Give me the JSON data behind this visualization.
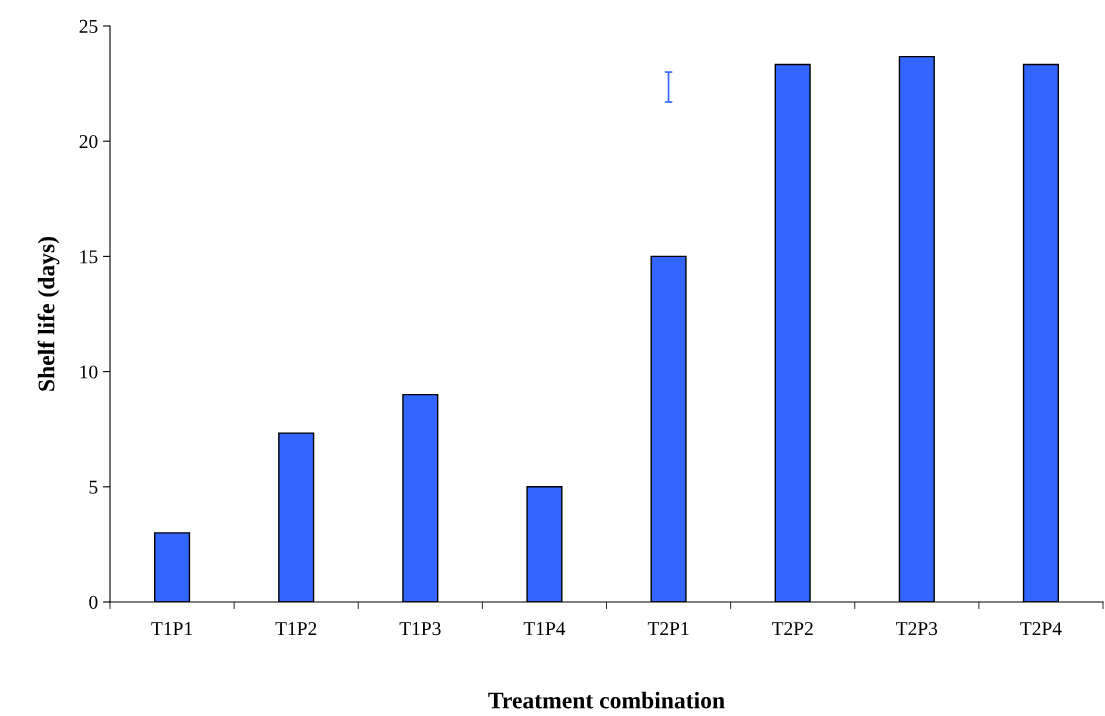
{
  "chart_data": {
    "type": "bar",
    "xlabel": "Treatment combination",
    "ylabel": "Shelf life (days)",
    "categories": [
      "T1P1",
      "T1P2",
      "T1P3",
      "T1P4",
      "T2P1",
      "T2P2",
      "T2P3",
      "T2P4"
    ],
    "values": [
      3,
      7.33,
      9,
      5,
      15,
      23.33,
      23.67,
      23.33
    ],
    "errors": [
      null,
      null,
      null,
      null,
      [
        21.7,
        23.0
      ],
      null,
      null,
      null
    ],
    "color": "#3366ff",
    "ylim": [
      0,
      25
    ],
    "yticks": [
      0,
      5,
      10,
      15,
      20,
      25
    ],
    "grid": false,
    "legend": false
  }
}
